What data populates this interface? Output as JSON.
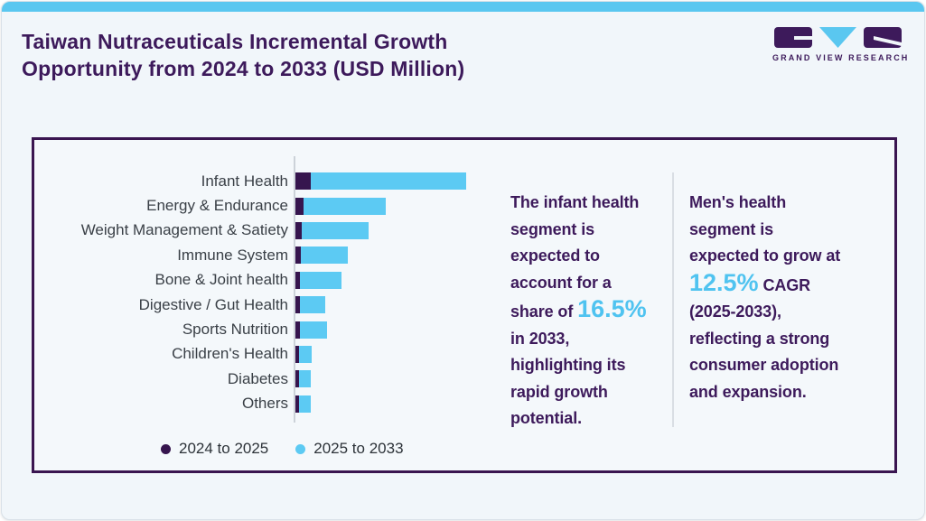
{
  "page": {
    "title_line1": "Taiwan Nutraceuticals Incremental Growth",
    "title_line2": "Opportunity from 2024 to 2033 (USD Million)",
    "logo_text": "GRAND VIEW RESEARCH"
  },
  "colors": {
    "accent_blue": "#5ac7f0",
    "brand_purple": "#3d1a5b",
    "bar_purple": "#36154e",
    "bar_blue": "#5ccaf3",
    "panel_border": "#3a1550",
    "highlight_text": "#4fc3f0",
    "label_text": "#3a4047",
    "background": "#f1f6fa"
  },
  "chart_data": {
    "type": "bar",
    "orientation": "horizontal-stacked",
    "title": "Taiwan Nutraceuticals Incremental Growth Opportunity from 2024 to 2033 (USD Million)",
    "categories": [
      "Infant Health",
      "Energy & Endurance",
      "Weight Management & Satiety",
      "Immune System",
      "Bone & Joint health",
      "Digestive / Gut Health",
      "Sports Nutrition",
      "Children's Health",
      "Diabetes",
      "Others"
    ],
    "series": [
      {
        "name": "2024 to 2025",
        "color": "#36154e",
        "values": [
          17,
          9,
          7,
          6,
          5,
          5,
          5,
          4,
          4,
          4
        ]
      },
      {
        "name": "2025 to 2033",
        "color": "#5ccaf3",
        "values": [
          172,
          91,
          74,
          52,
          46,
          28,
          30,
          14,
          13,
          13
        ]
      }
    ],
    "value_note": "no numeric axis shown in figure; values are relative magnitudes (px)",
    "xlabel": "",
    "ylabel": "",
    "grid": false,
    "legend_position": "bottom"
  },
  "annotations": {
    "left": {
      "pre": "The infant health\nsegment is\nexpected to\naccount for a\nshare of ",
      "highlight": "16.5%",
      "post": "\nin 2033,\nhighlighting its\nrapid growth\npotential."
    },
    "right": {
      "pre": "Men's health\nsegment is\nexpected to grow at\n",
      "highlight": "12.5%",
      "post": " CAGR\n(2025-2033),\nreflecting a strong\nconsumer adoption\nand expansion."
    }
  }
}
